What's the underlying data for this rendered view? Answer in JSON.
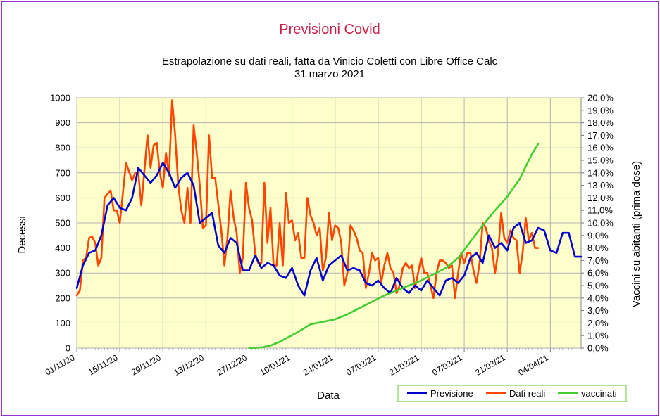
{
  "chart_data": {
    "type": "line",
    "title": "Previsioni Covid",
    "subtitle_lines": [
      "Estrapolazione su dati reali, fatta da Vinicio Coletti con Libre Office Calc",
      "31 marzo 2021"
    ],
    "xlabel": "Data",
    "ylabel": "Decessi",
    "y2label": "Vaccini su abitanti (prima dose)",
    "x_range": [
      "2020-11-01",
      "2021-04-14"
    ],
    "x_tick_labels": [
      "01/11/20",
      "15/11/20",
      "29/11/20",
      "13/12/20",
      "27/12/20",
      "10/01/21",
      "24/01/21",
      "07/02/21",
      "21/02/21",
      "07/03/21",
      "21/03/21",
      "04/04/21"
    ],
    "ylim": [
      0,
      1000
    ],
    "y_ticks": [
      0,
      100,
      200,
      300,
      400,
      500,
      600,
      700,
      800,
      900,
      1000
    ],
    "y2lim": [
      0,
      20
    ],
    "y2_tick_labels": [
      "0,0%",
      "1,0%",
      "2,0%",
      "3,0%",
      "4,0%",
      "5,0%",
      "6,0%",
      "7,0%",
      "8,0%",
      "9,0%",
      "10,0%",
      "11,0%",
      "12,0%",
      "13,0%",
      "14,0%",
      "15,0%",
      "16,0%",
      "17,0%",
      "18,0%",
      "19,0%",
      "20,0%"
    ],
    "grid": true,
    "legend_position": "bottom-right",
    "colors": {
      "plot_bg": "#ffffcc",
      "frame": "#9b30d0",
      "title": "#c8234a",
      "previsione": "#0000cc",
      "dati_reali": "#ff4500",
      "vaccinati": "#44cc33"
    },
    "series": [
      {
        "name": "Previsione",
        "axis": "left",
        "x": [
          "2020-11-01",
          "2020-11-03",
          "2020-11-05",
          "2020-11-07",
          "2020-11-09",
          "2020-11-11",
          "2020-11-13",
          "2020-11-15",
          "2020-11-17",
          "2020-11-19",
          "2020-11-21",
          "2020-11-23",
          "2020-11-25",
          "2020-11-27",
          "2020-11-29",
          "2020-12-01",
          "2020-12-03",
          "2020-12-05",
          "2020-12-07",
          "2020-12-09",
          "2020-12-11",
          "2020-12-13",
          "2020-12-15",
          "2020-12-17",
          "2020-12-19",
          "2020-12-21",
          "2020-12-23",
          "2020-12-25",
          "2020-12-27",
          "2020-12-29",
          "2020-12-31",
          "2021-01-02",
          "2021-01-04",
          "2021-01-06",
          "2021-01-08",
          "2021-01-10",
          "2021-01-12",
          "2021-01-14",
          "2021-01-16",
          "2021-01-18",
          "2021-01-20",
          "2021-01-22",
          "2021-01-24",
          "2021-01-26",
          "2021-01-28",
          "2021-01-30",
          "2021-02-01",
          "2021-02-03",
          "2021-02-05",
          "2021-02-07",
          "2021-02-09",
          "2021-02-11",
          "2021-02-13",
          "2021-02-15",
          "2021-02-17",
          "2021-02-19",
          "2021-02-21",
          "2021-02-23",
          "2021-02-25",
          "2021-02-27",
          "2021-03-01",
          "2021-03-03",
          "2021-03-05",
          "2021-03-07",
          "2021-03-09",
          "2021-03-11",
          "2021-03-13",
          "2021-03-15",
          "2021-03-17",
          "2021-03-19",
          "2021-03-21",
          "2021-03-23",
          "2021-03-25",
          "2021-03-27",
          "2021-03-29",
          "2021-03-31",
          "2021-04-02",
          "2021-04-04",
          "2021-04-06",
          "2021-04-08",
          "2021-04-10",
          "2021-04-12",
          "2021-04-14"
        ],
        "values": [
          240,
          330,
          380,
          390,
          450,
          570,
          600,
          560,
          550,
          600,
          720,
          690,
          660,
          690,
          740,
          700,
          640,
          680,
          700,
          650,
          500,
          520,
          540,
          410,
          380,
          440,
          420,
          310,
          310,
          370,
          320,
          340,
          330,
          290,
          280,
          320,
          250,
          210,
          310,
          360,
          270,
          330,
          350,
          370,
          310,
          320,
          310,
          260,
          250,
          270,
          240,
          220,
          280,
          240,
          220,
          250,
          230,
          270,
          240,
          210,
          270,
          280,
          260,
          290,
          360,
          380,
          340,
          450,
          400,
          420,
          390,
          480,
          500,
          420,
          430,
          480,
          470,
          390,
          380,
          460,
          460,
          365,
          365
        ]
      },
      {
        "name": "Dati reali",
        "axis": "left",
        "x": [
          "2020-11-01",
          "2020-11-02",
          "2020-11-03",
          "2020-11-04",
          "2020-11-05",
          "2020-11-06",
          "2020-11-07",
          "2020-11-08",
          "2020-11-09",
          "2020-11-10",
          "2020-11-12",
          "2020-11-13",
          "2020-11-14",
          "2020-11-15",
          "2020-11-17",
          "2020-11-19",
          "2020-11-20",
          "2020-11-21",
          "2020-11-22",
          "2020-11-24",
          "2020-11-25",
          "2020-11-26",
          "2020-11-27",
          "2020-11-28",
          "2020-11-29",
          "2020-11-30",
          "2020-12-01",
          "2020-12-02",
          "2020-12-03",
          "2020-12-04",
          "2020-12-05",
          "2020-12-06",
          "2020-12-07",
          "2020-12-08",
          "2020-12-09",
          "2020-12-10",
          "2020-12-11",
          "2020-12-12",
          "2020-12-13",
          "2020-12-14",
          "2020-12-15",
          "2020-12-16",
          "2020-12-18",
          "2020-12-19",
          "2020-12-20",
          "2020-12-21",
          "2020-12-22",
          "2020-12-23",
          "2020-12-24",
          "2020-12-25",
          "2020-12-26",
          "2020-12-27",
          "2020-12-28",
          "2020-12-29",
          "2020-12-30",
          "2020-12-31",
          "2021-01-01",
          "2021-01-02",
          "2021-01-03",
          "2021-01-04",
          "2021-01-05",
          "2021-01-06",
          "2021-01-07",
          "2021-01-08",
          "2021-01-09",
          "2021-01-10",
          "2021-01-11",
          "2021-01-12",
          "2021-01-13",
          "2021-01-14",
          "2021-01-15",
          "2021-01-16",
          "2021-01-17",
          "2021-01-18",
          "2021-01-19",
          "2021-01-20",
          "2021-01-21",
          "2021-01-22",
          "2021-01-23",
          "2021-01-24",
          "2021-01-25",
          "2021-01-26",
          "2021-01-27",
          "2021-01-28",
          "2021-01-29",
          "2021-01-30",
          "2021-01-31",
          "2021-02-01",
          "2021-02-02",
          "2021-02-03",
          "2021-02-04",
          "2021-02-05",
          "2021-02-06",
          "2021-02-07",
          "2021-02-08",
          "2021-02-09",
          "2021-02-10",
          "2021-02-11",
          "2021-02-12",
          "2021-02-13",
          "2021-02-14",
          "2021-02-15",
          "2021-02-16",
          "2021-02-17",
          "2021-02-18",
          "2021-02-19",
          "2021-02-20",
          "2021-02-21",
          "2021-02-22",
          "2021-02-23",
          "2021-02-24",
          "2021-02-25",
          "2021-02-26",
          "2021-02-27",
          "2021-02-28",
          "2021-03-01",
          "2021-03-02",
          "2021-03-03",
          "2021-03-04",
          "2021-03-05",
          "2021-03-06",
          "2021-03-07",
          "2021-03-08",
          "2021-03-09",
          "2021-03-10",
          "2021-03-11",
          "2021-03-12",
          "2021-03-13",
          "2021-03-14",
          "2021-03-15",
          "2021-03-16",
          "2021-03-17",
          "2021-03-18",
          "2021-03-19",
          "2021-03-20",
          "2021-03-21",
          "2021-03-22",
          "2021-03-23",
          "2021-03-24",
          "2021-03-25",
          "2021-03-26",
          "2021-03-27",
          "2021-03-28",
          "2021-03-29",
          "2021-03-30",
          "2021-03-31"
        ],
        "values": [
          210,
          230,
          350,
          360,
          440,
          445,
          420,
          330,
          360,
          600,
          630,
          550,
          550,
          500,
          740,
          670,
          700,
          700,
          570,
          850,
          720,
          810,
          820,
          700,
          640,
          780,
          690,
          990,
          850,
          650,
          550,
          500,
          640,
          500,
          890,
          780,
          650,
          480,
          490,
          850,
          680,
          680,
          470,
          330,
          440,
          630,
          520,
          460,
          300,
          360,
          660,
          560,
          510,
          380,
          340,
          340,
          660,
          420,
          560,
          330,
          330,
          500,
          330,
          620,
          500,
          510,
          430,
          460,
          360,
          360,
          600,
          530,
          500,
          450,
          480,
          310,
          360,
          540,
          430,
          490,
          480,
          420,
          250,
          300,
          490,
          470,
          440,
          390,
          380,
          240,
          300,
          380,
          350,
          360,
          260,
          330,
          380,
          320,
          300,
          220,
          250,
          320,
          340,
          320,
          330,
          240,
          300,
          360,
          300,
          300,
          250,
          200,
          300,
          350,
          350,
          340,
          320,
          330,
          200,
          300,
          380,
          340,
          380,
          380,
          310,
          260,
          340,
          500,
          480,
          430,
          400,
          300,
          380,
          540,
          440,
          420,
          470,
          440,
          430,
          300,
          380,
          520,
          430,
          460,
          400,
          400
        ]
      },
      {
        "name": "vaccinati",
        "axis": "right",
        "x": [
          "2020-12-27",
          "2020-12-31",
          "2021-01-03",
          "2021-01-06",
          "2021-01-09",
          "2021-01-12",
          "2021-01-16",
          "2021-01-20",
          "2021-01-24",
          "2021-01-28",
          "2021-02-01",
          "2021-02-05",
          "2021-02-09",
          "2021-02-13",
          "2021-02-17",
          "2021-02-21",
          "2021-02-25",
          "2021-03-01",
          "2021-03-05",
          "2021-03-09",
          "2021-03-13",
          "2021-03-17",
          "2021-03-21",
          "2021-03-25",
          "2021-03-29",
          "2021-03-31"
        ],
        "values": [
          0.0,
          0.05,
          0.2,
          0.5,
          0.9,
          1.3,
          1.9,
          2.1,
          2.3,
          2.7,
          3.2,
          3.7,
          4.2,
          4.6,
          5.0,
          5.4,
          5.9,
          6.4,
          7.2,
          8.5,
          9.8,
          11.0,
          12.1,
          13.5,
          15.5,
          16.3
        ]
      }
    ]
  }
}
